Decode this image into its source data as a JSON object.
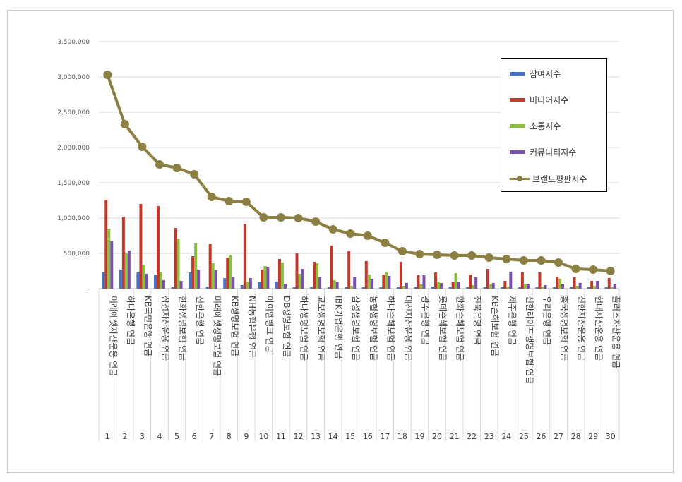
{
  "chart_data": {
    "type": "bar",
    "yaxis": {
      "ticks": [
        0,
        500000,
        1000000,
        1500000,
        2000000,
        2500000,
        3000000,
        3500000
      ],
      "tick_labels": [
        "-",
        "500,000",
        "1,000,000",
        "1,500,000",
        "2,000,000",
        "2,500,000",
        "3,000,000",
        "3,500,000"
      ],
      "ylim": [
        0,
        3500000
      ]
    },
    "grid": true,
    "legend_position": "top-right",
    "ranks": [
      "1",
      "2",
      "3",
      "4",
      "5",
      "6",
      "7",
      "8",
      "9",
      "10",
      "11",
      "12",
      "13",
      "14",
      "15",
      "16",
      "17",
      "18",
      "19",
      "20",
      "21",
      "22",
      "23",
      "24",
      "25",
      "26",
      "27",
      "28",
      "29",
      "30"
    ],
    "categories": [
      "미래에셋자산운용 연금",
      "하나은행 연금",
      "KB국민은행 연금",
      "삼성자산운용 연금",
      "한화생명보험 연금",
      "신한은행 연금",
      "미래에셋생명보험 연금",
      "KB생명보험 연금",
      "NH농협은행 연금",
      "아이엠뱅크 연금",
      "DB생명보험 연금",
      "하나생명보험 연금",
      "교보생명보험 연금",
      "IBK기업은행 연금",
      "삼성생명보험 연금",
      "농협생명보험 연금",
      "하나손해보험 연금",
      "대신자산운용 연금",
      "광주은행 연금",
      "롯데손해보험 연금",
      "한화손해보험 연금",
      "전북은행 연금",
      "KB손해보험 연금",
      "제주은행 연금",
      "신한라이프생명보험 연금",
      "우리은행 연금",
      "흥국생명보험 연금",
      "신한자산운용 연금",
      "현대자산운용 연금",
      "플러스자산운용 연금"
    ],
    "series": [
      {
        "name": "참여지수",
        "color": "#4472C4",
        "values": [
          230000,
          270000,
          230000,
          200000,
          20000,
          230000,
          30000,
          150000,
          50000,
          90000,
          100000,
          20000,
          20000,
          20000,
          20000,
          20000,
          20000,
          20000,
          30000,
          30000,
          30000,
          20000,
          20000,
          20000,
          20000,
          20000,
          20000,
          20000,
          20000,
          20000
        ]
      },
      {
        "name": "미디어지수",
        "color": "#C0392B",
        "values": [
          1260000,
          1020000,
          1200000,
          1170000,
          860000,
          460000,
          630000,
          440000,
          920000,
          270000,
          420000,
          500000,
          380000,
          610000,
          540000,
          390000,
          200000,
          380000,
          190000,
          230000,
          100000,
          200000,
          280000,
          110000,
          230000,
          230000,
          170000,
          160000,
          110000,
          150000
        ]
      },
      {
        "name": "소통지수",
        "color": "#8CBF3F",
        "values": [
          850000,
          500000,
          340000,
          240000,
          710000,
          640000,
          360000,
          480000,
          100000,
          320000,
          370000,
          210000,
          360000,
          120000,
          40000,
          200000,
          240000,
          40000,
          60000,
          100000,
          220000,
          50000,
          60000,
          30000,
          70000,
          30000,
          140000,
          40000,
          40000,
          20000
        ]
      },
      {
        "name": "커뮤니티지수",
        "color": "#7A4FB0",
        "values": [
          670000,
          540000,
          210000,
          120000,
          110000,
          270000,
          260000,
          170000,
          150000,
          310000,
          70000,
          280000,
          170000,
          90000,
          170000,
          130000,
          180000,
          80000,
          190000,
          80000,
          100000,
          160000,
          80000,
          240000,
          60000,
          50000,
          70000,
          80000,
          110000,
          70000
        ]
      },
      {
        "name": "브랜드평판지수",
        "type": "line",
        "color": "#8C7F42",
        "values": [
          3030000,
          2330000,
          2010000,
          1760000,
          1710000,
          1620000,
          1300000,
          1240000,
          1230000,
          1010000,
          1010000,
          1000000,
          950000,
          840000,
          780000,
          750000,
          650000,
          530000,
          490000,
          480000,
          470000,
          470000,
          440000,
          420000,
          400000,
          400000,
          370000,
          280000,
          270000,
          250000
        ]
      }
    ]
  }
}
